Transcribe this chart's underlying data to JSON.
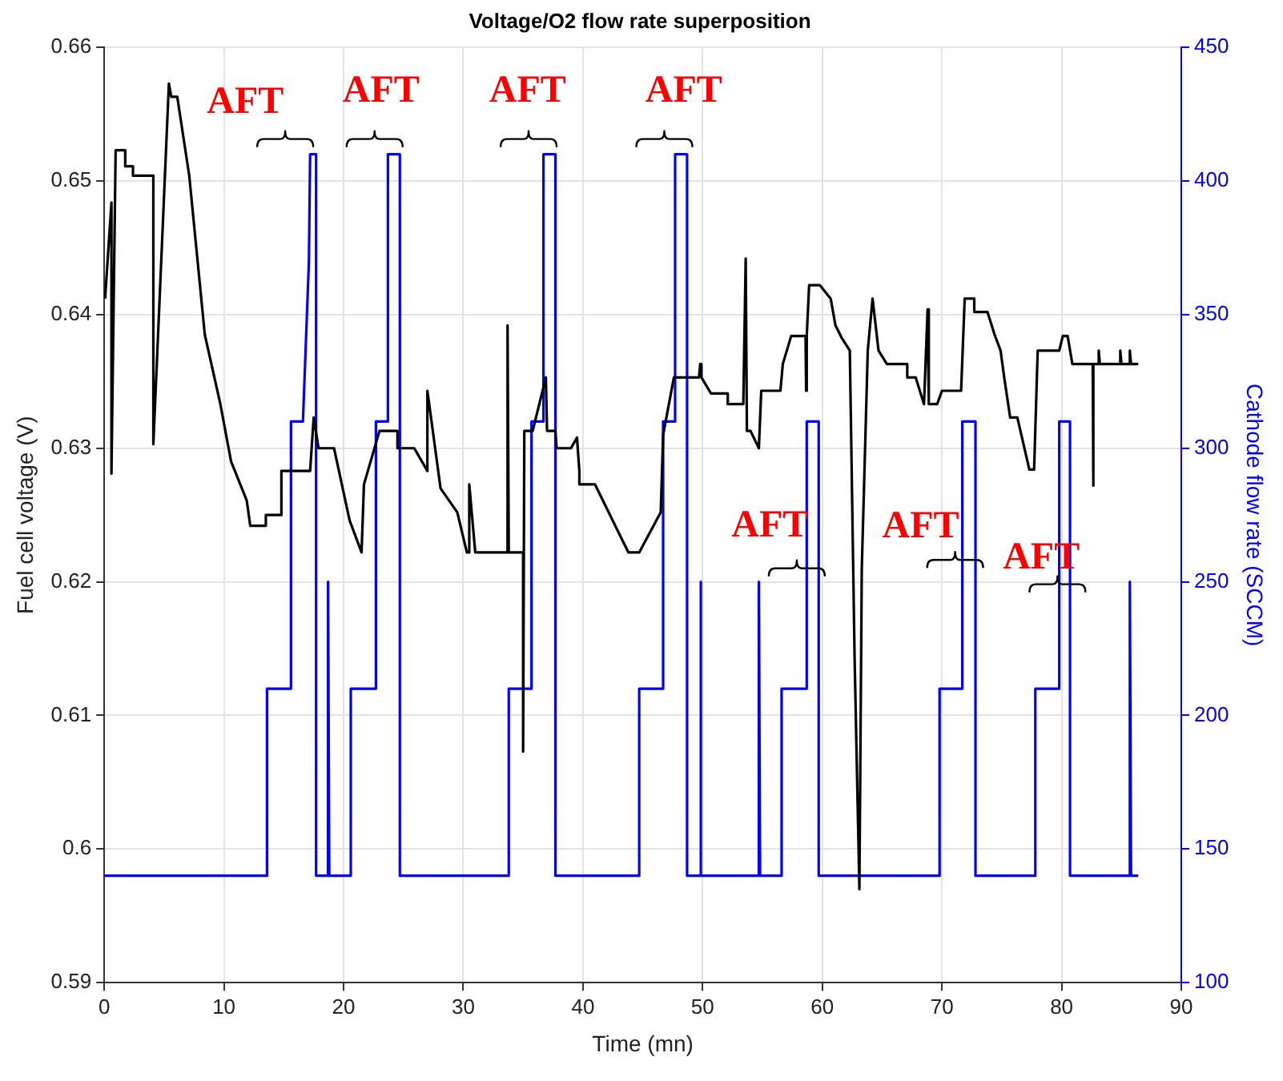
{
  "chart_data": {
    "type": "line",
    "title": "Voltage/O2 flow rate superposition",
    "xlabel": "Time (mn)",
    "ylabel": "Fuel cell voltage (V)",
    "y2label": "Cathode flow rate (SCCM)",
    "xlim": [
      0,
      90
    ],
    "xticks": [
      0,
      10,
      20,
      30,
      40,
      50,
      60,
      70,
      80,
      90
    ],
    "ylim": [
      0.59,
      0.66
    ],
    "yticks": [
      0.59,
      0.6,
      0.61,
      0.62,
      0.63,
      0.64,
      0.65,
      0.66
    ],
    "y2lim": [
      100,
      450
    ],
    "y2ticks": [
      100,
      150,
      200,
      250,
      300,
      350,
      400,
      450
    ],
    "grid": true,
    "legend": false,
    "series": [
      {
        "color": "#000000",
        "axis": "y",
        "x": [
          0.07,
          0.6,
          0.6,
          0.95,
          1.75,
          1.75,
          2.4,
          2.4,
          4.1,
          4.1,
          5.4,
          5.6,
          6.1,
          7.1,
          8.4,
          9.7,
          10.6,
          11.9,
          12.2,
          13.5,
          13.5,
          14.8,
          14.8,
          17.2,
          17.5,
          17.9,
          19.2,
          20.5,
          21.5,
          21.7,
          23.0,
          24.5,
          24.5,
          25.9,
          27.0,
          27.0,
          28.1,
          29.5,
          30.3,
          30.5,
          30.5,
          31.0,
          33.7,
          33.7,
          33.8,
          35.0,
          35.0,
          35.1,
          35.8,
          36.9,
          37.0,
          37.7,
          37.8,
          39.0,
          39.5,
          39.7,
          39.7,
          41.0,
          43.8,
          44.7,
          46.5,
          46.7,
          47.6,
          49.7,
          49.8,
          49.9,
          50.7,
          52.1,
          52.1,
          53.4,
          53.6,
          53.7,
          54.0,
          54.7,
          54.9,
          56.5,
          56.7,
          57.4,
          58.6,
          58.65,
          58.7,
          58.9,
          59.8,
          60.7,
          61.1,
          61.6,
          62.3,
          62.7,
          63.1,
          63.3,
          63.8,
          64.2,
          64.7,
          65.4,
          67.1,
          67.1,
          67.8,
          68.5,
          68.8,
          68.9,
          69.6,
          70.0,
          71.6,
          71.9,
          72.7,
          72.7,
          73.8,
          74.4,
          74.9,
          75.2,
          75.7,
          76.3,
          77.3,
          77.7,
          78.0,
          79.8,
          80.1,
          80.5,
          80.9,
          82.6,
          82.6,
          82.7,
          83.1,
          83.1,
          83.2,
          84.9,
          84.9,
          85.0,
          85.7,
          85.7,
          85.8,
          86.4
        ],
        "values": [
          0.6412,
          0.6484,
          0.6281,
          0.6523,
          0.6523,
          0.6511,
          0.6511,
          0.6504,
          0.6504,
          0.6303,
          0.6573,
          0.6563,
          0.6563,
          0.6504,
          0.6385,
          0.6333,
          0.629,
          0.6261,
          0.6242,
          0.6242,
          0.625,
          0.625,
          0.6283,
          0.6283,
          0.6323,
          0.63,
          0.63,
          0.6246,
          0.6222,
          0.6273,
          0.6313,
          0.6313,
          0.63,
          0.63,
          0.6283,
          0.6343,
          0.627,
          0.6252,
          0.6222,
          0.6222,
          0.6273,
          0.6222,
          0.6222,
          0.6392,
          0.6222,
          0.6222,
          0.6073,
          0.6313,
          0.6313,
          0.6353,
          0.6313,
          0.6313,
          0.63,
          0.63,
          0.6308,
          0.6283,
          0.6273,
          0.6273,
          0.6222,
          0.6222,
          0.6252,
          0.631,
          0.6353,
          0.6353,
          0.6363,
          0.6353,
          0.6341,
          0.6341,
          0.6333,
          0.6333,
          0.6442,
          0.6313,
          0.6313,
          0.63,
          0.6343,
          0.6343,
          0.6363,
          0.6384,
          0.6384,
          0.6343,
          0.6384,
          0.6422,
          0.6422,
          0.6412,
          0.6392,
          0.6383,
          0.6373,
          0.6143,
          0.597,
          0.621,
          0.6373,
          0.6412,
          0.6373,
          0.6363,
          0.6363,
          0.6353,
          0.6353,
          0.6333,
          0.6404,
          0.6333,
          0.6333,
          0.6343,
          0.6343,
          0.6412,
          0.6412,
          0.6402,
          0.6402,
          0.6385,
          0.6373,
          0.6353,
          0.6323,
          0.6323,
          0.6284,
          0.6284,
          0.6373,
          0.6373,
          0.6384,
          0.6384,
          0.6363,
          0.6363,
          0.6272,
          0.6363,
          0.6363,
          0.6373,
          0.6363,
          0.6363,
          0.6373,
          0.6363,
          0.6363,
          0.6373,
          0.6363,
          0.6363
        ]
      },
      {
        "color": "#0000ff",
        "axis": "y2",
        "x": [
          0,
          13.6,
          13.6,
          15.6,
          15.6,
          16.6,
          17.1,
          17.2,
          17.7,
          17.7,
          18.7,
          18.7,
          18.8,
          20.6,
          20.6,
          22.7,
          22.7,
          23.7,
          23.7,
          24.7,
          24.7,
          33.8,
          33.8,
          35.7,
          35.7,
          36.7,
          36.7,
          37.7,
          37.7,
          44.7,
          44.7,
          46.7,
          46.7,
          47.7,
          47.7,
          48.7,
          48.7,
          49.8,
          49.8,
          49.9,
          54.7,
          54.7,
          54.8,
          56.6,
          56.6,
          58.7,
          58.7,
          59.7,
          59.7,
          69.8,
          69.8,
          71.7,
          71.7,
          72.8,
          72.8,
          77.8,
          77.8,
          79.8,
          79.8,
          80.7,
          80.7,
          85.7,
          85.7,
          85.8,
          86.4
        ],
        "values": [
          140,
          140,
          210,
          210,
          310,
          310,
          370,
          410,
          410,
          140,
          140,
          250,
          140,
          140,
          210,
          210,
          310,
          310,
          410,
          410,
          140,
          140,
          210,
          210,
          310,
          310,
          410,
          410,
          140,
          140,
          210,
          210,
          310,
          310,
          410,
          410,
          140,
          140,
          250,
          140,
          140,
          250,
          140,
          140,
          210,
          210,
          310,
          310,
          140,
          140,
          210,
          210,
          310,
          310,
          140,
          140,
          210,
          210,
          310,
          310,
          140,
          140,
          250,
          140,
          140
        ]
      }
    ],
    "annotations": [
      "AFT",
      "AFT",
      "AFT",
      "AFT",
      "AFT",
      "AFT",
      "AFT"
    ]
  }
}
